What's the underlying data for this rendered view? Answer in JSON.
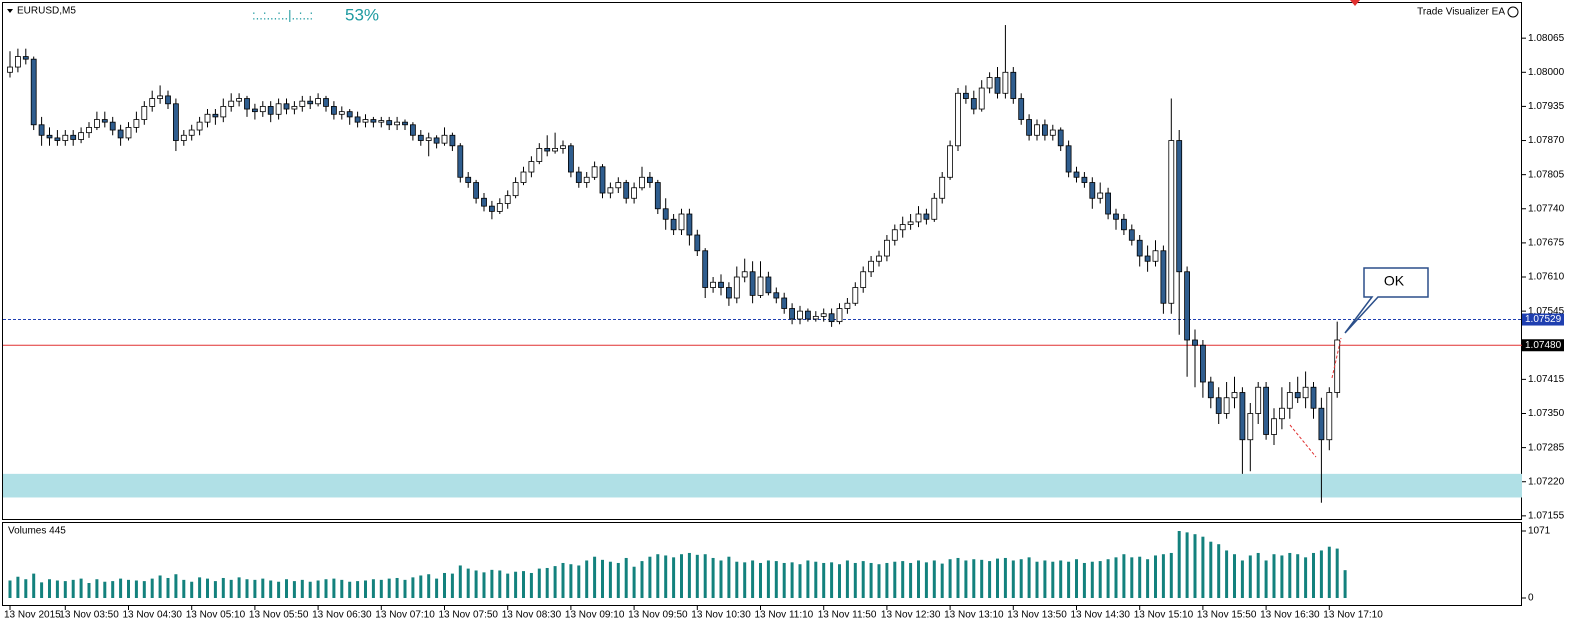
{
  "header": {
    "symbol": "EURUSD,M5",
    "progress": ":..:...:..|..:..:",
    "progress_pct": "53%",
    "expert": "Trade Visualizer EA",
    "callout": "OK"
  },
  "chart_data": {
    "type": "candlestick",
    "up_color": "#ffffff",
    "down_color": "#2f5d8e",
    "ylim": [
      1.07149,
      1.08132
    ],
    "yticks": [
      1.08065,
      {
        "value": 1.08,
        "label": "1.08000"
      },
      1.07935,
      {
        "value": 1.0787,
        "label": "1.07870"
      },
      1.07805,
      {
        "value": 1.0774,
        "label": "1.07740"
      },
      1.07675,
      {
        "value": 1.0761,
        "label": "1.07610"
      },
      1.07545,
      1.07415,
      {
        "value": 1.0735,
        "label": "1.07350"
      },
      1.07285,
      {
        "value": 1.0722,
        "label": "1.07220"
      },
      1.07155
    ],
    "levels": [
      {
        "value": 1.07529,
        "label": "1.07529",
        "color": "#1f3fb0"
      },
      {
        "value": 1.0748,
        "label": "1.07480",
        "color": "#e03030"
      }
    ],
    "zone": [
      1.0719,
      1.07235
    ],
    "zone_color": "#b0e0e6",
    "categories": [
      "13 Nov 2015",
      null,
      null,
      null,
      null,
      null,
      null,
      "13 Nov 03:50",
      null,
      null,
      null,
      null,
      null,
      null,
      null,
      "13 Nov 04:30",
      null,
      null,
      null,
      null,
      null,
      null,
      null,
      "13 Nov 05:10",
      null,
      null,
      null,
      null,
      null,
      null,
      null,
      "13 Nov 05:50",
      null,
      null,
      null,
      null,
      null,
      null,
      null,
      "13 Nov 06:30",
      null,
      null,
      null,
      null,
      null,
      null,
      null,
      "13 Nov 07:10",
      null,
      null,
      null,
      null,
      null,
      null,
      null,
      "13 Nov 07:50",
      null,
      null,
      null,
      null,
      null,
      null,
      null,
      "13 Nov 08:30",
      null,
      null,
      null,
      null,
      null,
      null,
      null,
      "13 Nov 09:10",
      null,
      null,
      null,
      null,
      null,
      null,
      null,
      "13 Nov 09:50",
      null,
      null,
      null,
      null,
      null,
      null,
      null,
      "13 Nov 10:30",
      null,
      null,
      null,
      null,
      null,
      null,
      null,
      "13 Nov 11:10",
      null,
      null,
      null,
      null,
      null,
      null,
      null,
      "13 Nov 11:50",
      null,
      null,
      null,
      null,
      null,
      null,
      null,
      "13 Nov 12:30",
      null,
      null,
      null,
      null,
      null,
      null,
      null,
      "13 Nov 13:10",
      null,
      null,
      null,
      null,
      null,
      null,
      null,
      "13 Nov 13:50",
      null,
      null,
      null,
      null,
      null,
      null,
      null,
      "13 Nov 14:30",
      null,
      null,
      null,
      null,
      null,
      null,
      null,
      "13 Nov 15:10",
      null,
      null,
      null,
      null,
      null,
      null,
      null,
      "13 Nov 15:50",
      null,
      null,
      null,
      null,
      null,
      null,
      null,
      "13 Nov 16:30",
      null,
      null,
      null,
      null,
      null,
      null,
      null,
      "13 Nov 17:10",
      null
    ],
    "candles": [
      [
        1.08,
        1.0804,
        1.0799,
        1.0801
      ],
      [
        1.0801,
        1.08045,
        1.08,
        1.0803
      ],
      [
        1.0803,
        1.08045,
        1.08015,
        1.08025
      ],
      [
        1.08025,
        1.0803,
        1.0789,
        1.079
      ],
      [
        1.079,
        1.07915,
        1.0786,
        1.0788
      ],
      [
        1.0788,
        1.07895,
        1.0786,
        1.07875
      ],
      [
        1.07875,
        1.0789,
        1.0786,
        1.0787
      ],
      [
        1.0787,
        1.0789,
        1.0786,
        1.0788
      ],
      [
        1.0788,
        1.0789,
        1.0786,
        1.07872
      ],
      [
        1.07872,
        1.07895,
        1.07865,
        1.07885
      ],
      [
        1.07885,
        1.07905,
        1.07875,
        1.07895
      ],
      [
        1.07895,
        1.07925,
        1.0789,
        1.0791
      ],
      [
        1.0791,
        1.07925,
        1.07895,
        1.07905
      ],
      [
        1.07905,
        1.07915,
        1.0788,
        1.0789
      ],
      [
        1.0789,
        1.079,
        1.0786,
        1.07875
      ],
      [
        1.07875,
        1.07905,
        1.0787,
        1.07895
      ],
      [
        1.07895,
        1.07925,
        1.07885,
        1.0791
      ],
      [
        1.0791,
        1.07945,
        1.079,
        1.07935
      ],
      [
        1.07935,
        1.07965,
        1.07925,
        1.0795
      ],
      [
        1.0795,
        1.07975,
        1.0794,
        1.07955
      ],
      [
        1.07955,
        1.07965,
        1.0793,
        1.0794
      ],
      [
        1.0794,
        1.0795,
        1.0785,
        1.0787
      ],
      [
        1.0787,
        1.0789,
        1.0786,
        1.0788
      ],
      [
        1.0788,
        1.079,
        1.0787,
        1.0789
      ],
      [
        1.0789,
        1.07915,
        1.0788,
        1.07905
      ],
      [
        1.07905,
        1.0793,
        1.07895,
        1.0792
      ],
      [
        1.0792,
        1.0793,
        1.079,
        1.07915
      ],
      [
        1.07915,
        1.0795,
        1.07905,
        1.07935
      ],
      [
        1.07935,
        1.0796,
        1.07925,
        1.07945
      ],
      [
        1.07945,
        1.0796,
        1.07935,
        1.0795
      ],
      [
        1.0795,
        1.07955,
        1.07915,
        1.0793
      ],
      [
        1.0793,
        1.0794,
        1.0791,
        1.07925
      ],
      [
        1.07925,
        1.07945,
        1.07915,
        1.07935
      ],
      [
        1.07935,
        1.07945,
        1.07905,
        1.0792
      ],
      [
        1.0792,
        1.0795,
        1.0791,
        1.0794
      ],
      [
        1.0794,
        1.0795,
        1.0792,
        1.0793
      ],
      [
        1.0793,
        1.07945,
        1.0792,
        1.07935
      ],
      [
        1.07935,
        1.07955,
        1.07925,
        1.07945
      ],
      [
        1.07945,
        1.07955,
        1.0793,
        1.0794
      ],
      [
        1.0794,
        1.0796,
        1.07935,
        1.0795
      ],
      [
        1.0795,
        1.07955,
        1.07925,
        1.07935
      ],
      [
        1.07935,
        1.07945,
        1.0791,
        1.0792
      ],
      [
        1.0792,
        1.07935,
        1.0791,
        1.07925
      ],
      [
        1.07925,
        1.0793,
        1.079,
        1.07915
      ],
      [
        1.07915,
        1.07925,
        1.07895,
        1.07905
      ],
      [
        1.07905,
        1.0792,
        1.07895,
        1.0791
      ],
      [
        1.0791,
        1.07915,
        1.07895,
        1.07905
      ],
      [
        1.07905,
        1.07915,
        1.07895,
        1.07908
      ],
      [
        1.07908,
        1.07915,
        1.0789,
        1.079
      ],
      [
        1.079,
        1.07915,
        1.0789,
        1.07905
      ],
      [
        1.07905,
        1.0791,
        1.0789,
        1.079
      ],
      [
        1.079,
        1.07905,
        1.0787,
        1.0788
      ],
      [
        1.0788,
        1.0789,
        1.0786,
        1.0787
      ],
      [
        1.0787,
        1.07885,
        1.0784,
        1.07875
      ],
      [
        1.07875,
        1.0788,
        1.07855,
        1.07865
      ],
      [
        1.07865,
        1.07895,
        1.0786,
        1.0788
      ],
      [
        1.0788,
        1.07885,
        1.0785,
        1.0786
      ],
      [
        1.0786,
        1.07865,
        1.0779,
        1.078
      ],
      [
        1.078,
        1.0781,
        1.0778,
        1.0779
      ],
      [
        1.0779,
        1.07795,
        1.0775,
        1.0776
      ],
      [
        1.0776,
        1.0777,
        1.07735,
        1.07745
      ],
      [
        1.07745,
        1.07755,
        1.0772,
        1.07735
      ],
      [
        1.07735,
        1.0776,
        1.0773,
        1.0775
      ],
      [
        1.0775,
        1.07775,
        1.0774,
        1.07765
      ],
      [
        1.07765,
        1.078,
        1.0776,
        1.0779
      ],
      [
        1.0779,
        1.0782,
        1.07785,
        1.0781
      ],
      [
        1.0781,
        1.0784,
        1.078,
        1.0783
      ],
      [
        1.0783,
        1.07865,
        1.07825,
        1.07855
      ],
      [
        1.07855,
        1.0788,
        1.0784,
        1.0785
      ],
      [
        1.0785,
        1.07885,
        1.07845,
        1.07855
      ],
      [
        1.07855,
        1.0787,
        1.07845,
        1.0786
      ],
      [
        1.0786,
        1.07865,
        1.078,
        1.0781
      ],
      [
        1.0781,
        1.0782,
        1.0778,
        1.0779
      ],
      [
        1.0779,
        1.0781,
        1.0778,
        1.078
      ],
      [
        1.078,
        1.0783,
        1.07795,
        1.0782
      ],
      [
        1.0782,
        1.07825,
        1.0776,
        1.0777
      ],
      [
        1.0777,
        1.0779,
        1.0776,
        1.0778
      ],
      [
        1.0778,
        1.078,
        1.0777,
        1.0779
      ],
      [
        1.0779,
        1.07795,
        1.0775,
        1.0776
      ],
      [
        1.0776,
        1.0779,
        1.0775,
        1.0778
      ],
      [
        1.0778,
        1.0782,
        1.07775,
        1.078
      ],
      [
        1.078,
        1.0781,
        1.0778,
        1.0779
      ],
      [
        1.0779,
        1.07795,
        1.0773,
        1.0774
      ],
      [
        1.0774,
        1.0776,
        1.077,
        1.0772
      ],
      [
        1.0772,
        1.0773,
        1.0769,
        1.077
      ],
      [
        1.077,
        1.0774,
        1.0769,
        1.0773
      ],
      [
        1.0773,
        1.0774,
        1.0767,
        1.0769
      ],
      [
        1.0769,
        1.077,
        1.0765,
        1.0766
      ],
      [
        1.0766,
        1.07665,
        1.0757,
        1.0759
      ],
      [
        1.0759,
        1.0761,
        1.0758,
        1.076
      ],
      [
        1.076,
        1.07615,
        1.07575,
        1.0759
      ],
      [
        1.0759,
        1.076,
        1.07555,
        1.0757
      ],
      [
        1.0757,
        1.0763,
        1.0756,
        1.0761
      ],
      [
        1.0761,
        1.07645,
        1.076,
        1.0762
      ],
      [
        1.0762,
        1.0764,
        1.0756,
        1.07575
      ],
      [
        1.07575,
        1.0764,
        1.0757,
        1.0761
      ],
      [
        1.0761,
        1.0762,
        1.07575,
        1.0758
      ],
      [
        1.0758,
        1.0759,
        1.0756,
        1.0757
      ],
      [
        1.0757,
        1.0758,
        1.0754,
        1.0755
      ],
      [
        1.0755,
        1.0756,
        1.0752,
        1.0753
      ],
      [
        1.0753,
        1.07555,
        1.0752,
        1.07545
      ],
      [
        1.07545,
        1.0755,
        1.07525,
        1.0753
      ],
      [
        1.0753,
        1.07545,
        1.07525,
        1.07535
      ],
      [
        1.07535,
        1.0755,
        1.07525,
        1.0754
      ],
      [
        1.0754,
        1.0755,
        1.07515,
        1.07525
      ],
      [
        1.07525,
        1.0756,
        1.0752,
        1.0755
      ],
      [
        1.0755,
        1.0757,
        1.0754,
        1.0756
      ],
      [
        1.0756,
        1.076,
        1.07555,
        1.0759
      ],
      [
        1.0759,
        1.0763,
        1.0758,
        1.0762
      ],
      [
        1.0762,
        1.0765,
        1.0761,
        1.0764
      ],
      [
        1.0764,
        1.0766,
        1.0763,
        1.0765
      ],
      [
        1.0765,
        1.0769,
        1.0764,
        1.0768
      ],
      [
        1.0768,
        1.0771,
        1.0767,
        1.077
      ],
      [
        1.077,
        1.07725,
        1.07685,
        1.0771
      ],
      [
        1.0771,
        1.0773,
        1.077,
        1.07715
      ],
      [
        1.07715,
        1.07745,
        1.07705,
        1.0773
      ],
      [
        1.0773,
        1.0774,
        1.0771,
        1.0772
      ],
      [
        1.0772,
        1.0777,
        1.07715,
        1.0776
      ],
      [
        1.0776,
        1.0781,
        1.0775,
        1.078
      ],
      [
        1.078,
        1.0787,
        1.07795,
        1.0786
      ],
      [
        1.0786,
        1.0797,
        1.0785,
        1.0796
      ],
      [
        1.0796,
        1.07975,
        1.0794,
        1.0795
      ],
      [
        1.0795,
        1.07965,
        1.0792,
        1.0793
      ],
      [
        1.0793,
        1.07985,
        1.07925,
        1.0797
      ],
      [
        1.0797,
        1.08,
        1.0796,
        1.0799
      ],
      [
        1.0799,
        1.0801,
        1.0795,
        1.0796
      ],
      [
        1.0796,
        1.0809,
        1.0795,
        1.08
      ],
      [
        1.08,
        1.0801,
        1.0794,
        1.0795
      ],
      [
        1.0795,
        1.0796,
        1.079,
        1.0791
      ],
      [
        1.0791,
        1.0792,
        1.0787,
        1.0788
      ],
      [
        1.0788,
        1.0791,
        1.0787,
        1.079
      ],
      [
        1.079,
        1.0791,
        1.0787,
        1.0788
      ],
      [
        1.0788,
        1.079,
        1.0787,
        1.0789
      ],
      [
        1.0789,
        1.07895,
        1.0785,
        1.0786
      ],
      [
        1.0786,
        1.0787,
        1.078,
        1.0781
      ],
      [
        1.0781,
        1.0782,
        1.0779,
        1.078
      ],
      [
        1.078,
        1.0781,
        1.0778,
        1.0779
      ],
      [
        1.0779,
        1.078,
        1.0774,
        1.0776
      ],
      [
        1.0776,
        1.0779,
        1.0775,
        1.0777
      ],
      [
        1.0777,
        1.0778,
        1.0772,
        1.0773
      ],
      [
        1.0773,
        1.0774,
        1.077,
        1.0772
      ],
      [
        1.0772,
        1.0773,
        1.0769,
        1.077
      ],
      [
        1.077,
        1.0771,
        1.0767,
        1.0768
      ],
      [
        1.0768,
        1.0769,
        1.0763,
        1.0765
      ],
      [
        1.0765,
        1.0767,
        1.0762,
        1.0764
      ],
      [
        1.0764,
        1.0768,
        1.0763,
        1.0766
      ],
      [
        1.0766,
        1.0767,
        1.0754,
        1.0756
      ],
      [
        1.0756,
        1.0795,
        1.0754,
        1.0787
      ],
      [
        1.0787,
        1.0789,
        1.075,
        1.0762
      ],
      [
        1.0762,
        1.0763,
        1.0742,
        1.0749
      ],
      [
        1.0749,
        1.0751,
        1.074,
        1.0748
      ],
      [
        1.0748,
        1.0749,
        1.0738,
        1.0741
      ],
      [
        1.0741,
        1.0742,
        1.0736,
        1.0738
      ],
      [
        1.0738,
        1.074,
        1.0733,
        1.0735
      ],
      [
        1.0735,
        1.0741,
        1.0734,
        1.0738
      ],
      [
        1.0738,
        1.0742,
        1.0736,
        1.0739
      ],
      [
        1.0739,
        1.074,
        1.07235,
        1.073
      ],
      [
        1.073,
        1.0737,
        1.0724,
        1.0735
      ],
      [
        1.0735,
        1.0741,
        1.0733,
        1.074
      ],
      [
        1.074,
        1.0741,
        1.073,
        1.0731
      ],
      [
        1.0731,
        1.0736,
        1.0729,
        1.0734
      ],
      [
        1.0734,
        1.074,
        1.0732,
        1.0736
      ],
      [
        1.0736,
        1.0741,
        1.0734,
        1.0739
      ],
      [
        1.0739,
        1.0742,
        1.0737,
        1.0738
      ],
      [
        1.0738,
        1.0743,
        1.0736,
        1.074
      ],
      [
        1.074,
        1.0741,
        1.0734,
        1.0736
      ],
      [
        1.0736,
        1.0738,
        1.0718,
        1.073
      ],
      [
        1.073,
        1.074,
        1.0728,
        1.0739
      ],
      [
        1.0739,
        1.07525,
        1.0738,
        1.0749
      ]
    ],
    "volume": {
      "title": "Volumes 445",
      "color": "#13817d",
      "ylim": [
        0,
        1071
      ],
      "yticks": [
        0,
        1071
      ],
      "values": [
        280,
        340,
        300,
        390,
        250,
        300,
        280,
        270,
        290,
        310,
        240,
        300,
        260,
        270,
        310,
        290,
        280,
        270,
        310,
        360,
        320,
        380,
        290,
        260,
        330,
        310,
        270,
        320,
        290,
        330,
        300,
        290,
        310,
        280,
        260,
        300,
        270,
        290,
        260,
        280,
        300,
        310,
        290,
        260,
        270,
        280,
        300,
        290,
        310,
        320,
        290,
        330,
        360,
        380,
        310,
        400,
        390,
        520,
        470,
        440,
        410,
        450,
        440,
        390,
        420,
        430,
        400,
        470,
        480,
        510,
        560,
        540,
        520,
        600,
        660,
        610,
        580,
        560,
        640,
        500,
        590,
        660,
        700,
        680,
        650,
        700,
        720,
        690,
        700,
        640,
        600,
        660,
        580,
        570,
        600,
        560,
        600,
        590,
        560,
        570,
        540,
        600,
        580,
        560,
        570,
        540,
        600,
        560,
        590,
        560,
        540,
        560,
        580,
        590,
        560,
        600,
        570,
        600,
        550,
        620,
        640,
        600,
        620,
        610,
        590,
        630,
        640,
        600,
        620,
        650,
        580,
        600,
        580,
        600,
        580,
        620,
        560,
        580,
        590,
        620,
        650,
        700,
        650,
        660,
        620,
        680,
        700,
        720,
        1071,
        1050,
        1020,
        980,
        900,
        860,
        760,
        700,
        600,
        680,
        720,
        600,
        700,
        680,
        720,
        700,
        650,
        720,
        760,
        820,
        790,
        445
      ]
    }
  }
}
